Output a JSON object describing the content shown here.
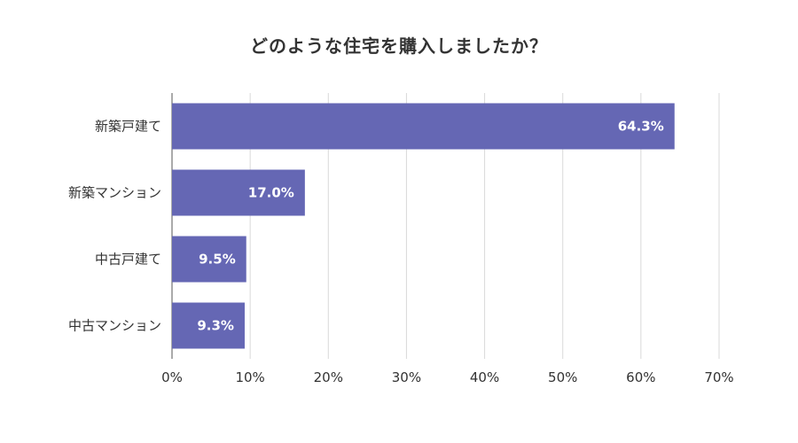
{
  "chart_data": {
    "type": "bar",
    "orientation": "horizontal",
    "title": "どのような住宅を購入しましたか？",
    "categories": [
      "新築戸建て",
      "新築マンション",
      "中古戸建て",
      "中古マンション"
    ],
    "values": [
      64.3,
      17.0,
      9.5,
      9.3
    ],
    "value_labels": [
      "64.3%",
      "17.0%",
      "9.5%",
      "9.3%"
    ],
    "xlim": [
      0,
      70
    ],
    "x_ticks": [
      0,
      10,
      20,
      30,
      40,
      50,
      60,
      70
    ],
    "x_tick_labels": [
      "0%",
      "10%",
      "20%",
      "30%",
      "40%",
      "50%",
      "60%",
      "70%"
    ],
    "grid": true,
    "legend": "none",
    "colors": {
      "bar": "#6567b4",
      "grid": "#d9d9d9",
      "axis": "#555555"
    }
  }
}
